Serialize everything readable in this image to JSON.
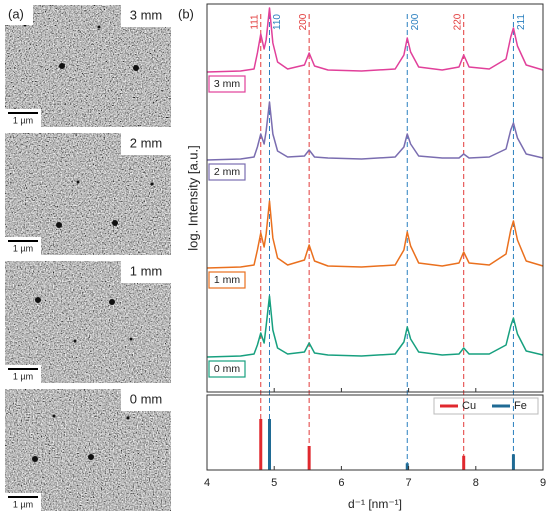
{
  "panel_a": {
    "label": "(a)",
    "images": [
      {
        "label": "3 mm",
        "scale_bar": "1 µm"
      },
      {
        "label": "2 mm",
        "scale_bar": "1 µm"
      },
      {
        "label": "1 mm",
        "scale_bar": "1 µm"
      },
      {
        "label": "0 mm",
        "scale_bar": "1 µm"
      }
    ]
  },
  "chart_data": [
    {
      "type": "line",
      "panel_label": "(b)",
      "y_label": "log. Intensity [a.u.]",
      "x": [
        4.0,
        4.5,
        4.7,
        4.75,
        4.8,
        4.85,
        4.88,
        4.93,
        4.98,
        5.05,
        5.2,
        5.45,
        5.52,
        5.6,
        5.8,
        6.3,
        6.8,
        6.93,
        6.98,
        7.03,
        7.15,
        7.5,
        7.75,
        7.82,
        7.9,
        8.2,
        8.45,
        8.52,
        8.56,
        8.62,
        8.75,
        9.0
      ],
      "series": [
        {
          "name": "0 mm",
          "color": "#17a07f",
          "values": [
            35,
            36,
            38,
            47,
            59,
            49,
            66,
            96,
            62,
            44,
            38,
            40,
            49,
            39,
            37,
            36,
            38,
            50,
            65,
            53,
            40,
            37,
            38,
            44,
            38,
            38,
            47,
            66,
            74,
            58,
            41,
            37
          ]
        },
        {
          "name": "1 mm",
          "color": "#ea701e",
          "values": [
            124,
            125,
            127,
            142,
            159,
            145,
            158,
            191,
            154,
            134,
            127,
            132,
            147,
            131,
            126,
            125,
            127,
            142,
            160,
            146,
            129,
            126,
            129,
            140,
            129,
            127,
            138,
            162,
            171,
            152,
            131,
            126
          ]
        },
        {
          "name": "2 mm",
          "color": "#7a6db0",
          "values": [
            232,
            233,
            235,
            245,
            258,
            248,
            261,
            290,
            258,
            241,
            235,
            236,
            242,
            235,
            234,
            233,
            235,
            245,
            258,
            248,
            236,
            234,
            234,
            238,
            234,
            235,
            243,
            262,
            269,
            254,
            238,
            234
          ]
        },
        {
          "name": "3 mm",
          "color": "#e1409a",
          "values": [
            320,
            321,
            323,
            339,
            358,
            343,
            352,
            384,
            349,
            330,
            323,
            327,
            339,
            326,
            322,
            321,
            323,
            337,
            354,
            340,
            325,
            322,
            325,
            337,
            325,
            323,
            333,
            355,
            364,
            346,
            327,
            322
          ]
        }
      ],
      "xlim": [
        4,
        9
      ],
      "xticks": [
        4,
        5,
        6,
        7,
        8,
        9
      ],
      "ylim": [
        0,
        388
      ],
      "reference_lines": [
        {
          "x": 4.8,
          "label": "111",
          "color": "#e23b3b"
        },
        {
          "x": 4.93,
          "label": "110",
          "color": "#2a7fbf"
        },
        {
          "x": 5.52,
          "label": "200",
          "color": "#e23b3b"
        },
        {
          "x": 6.98,
          "label": "200",
          "color": "#2a7fbf"
        },
        {
          "x": 7.82,
          "label": "220",
          "color": "#e23b3b"
        },
        {
          "x": 8.56,
          "label": "211",
          "color": "#2a7fbf"
        }
      ]
    },
    {
      "type": "stick",
      "x_label": "d⁻¹ [nm⁻¹]",
      "series": [
        {
          "name": "Cu",
          "color": "#e0282e",
          "x": [
            4.8,
            5.52,
            7.82
          ],
          "values": [
            68,
            32,
            19
          ]
        },
        {
          "name": "Fe",
          "color": "#1f6a94",
          "x": [
            4.93,
            6.98,
            8.56
          ],
          "values": [
            68,
            9,
            21
          ]
        }
      ],
      "xlim": [
        4,
        9
      ],
      "xticks": [
        4,
        5,
        6,
        7,
        8,
        9
      ],
      "ylim": [
        0,
        100
      ]
    }
  ]
}
